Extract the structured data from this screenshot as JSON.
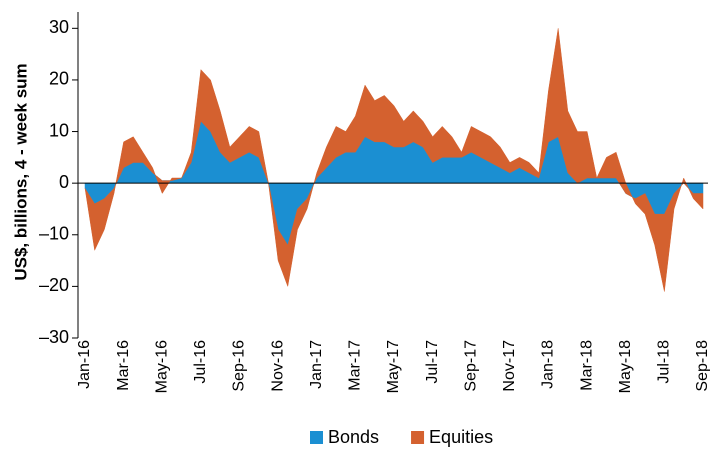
{
  "chart_data": {
    "type": "stacked_area",
    "ylabel": "US$, billions, 4 - week sum",
    "categories": [
      "Jan-16",
      null,
      null,
      null,
      "Mar-16",
      null,
      null,
      null,
      "May-16",
      null,
      null,
      null,
      "Jul-16",
      null,
      null,
      null,
      "Sep-16",
      null,
      null,
      null,
      "Nov-16",
      null,
      null,
      null,
      "Jan-17",
      null,
      null,
      null,
      "Mar-17",
      null,
      null,
      null,
      "May-17",
      null,
      null,
      null,
      "Jul-17",
      null,
      null,
      null,
      "Sep-17",
      null,
      null,
      null,
      "Nov-17",
      null,
      null,
      null,
      "Jan-18",
      null,
      null,
      null,
      "Mar-18",
      null,
      null,
      null,
      "May-18",
      null,
      null,
      null,
      "Jul-18",
      null,
      null,
      null,
      "Sep-18"
    ],
    "series": [
      {
        "name": "Bonds",
        "color": "#1b8fd2",
        "values": [
          -1,
          -4,
          -3,
          -1,
          3,
          4,
          4,
          2,
          0.5,
          0.5,
          1,
          4,
          12,
          10,
          6,
          4,
          5,
          6,
          5,
          0,
          -9,
          -12,
          -5,
          -3,
          1,
          3,
          5,
          6,
          6,
          9,
          8,
          8,
          7,
          7,
          8,
          7,
          4,
          5,
          5,
          5,
          6,
          5,
          4,
          3,
          2,
          3,
          2,
          1,
          8,
          9,
          2,
          0,
          1,
          1,
          1,
          1,
          -2,
          -3,
          -2,
          -6,
          -6,
          -2,
          0,
          -2,
          -2
        ]
      },
      {
        "name": "Equities",
        "color": "#d4612f",
        "values": [
          0,
          -9,
          -6,
          -1,
          5,
          5,
          2,
          1,
          -2.5,
          0.5,
          0,
          2,
          10,
          10,
          8,
          3,
          4,
          5,
          5,
          0,
          -6,
          -8,
          -4,
          -2,
          1,
          4,
          6,
          4,
          7,
          10,
          8,
          9,
          8,
          5,
          6,
          5,
          5,
          6,
          4,
          1,
          5,
          5,
          5,
          4,
          2,
          2,
          2,
          1,
          10,
          21,
          12,
          10,
          9,
          0,
          4,
          5,
          2,
          -1,
          -4,
          -6,
          -15,
          -3,
          1,
          -1,
          -3
        ]
      }
    ],
    "ylim": [
      -30,
      32
    ],
    "yticks": [
      {
        "value": -30,
        "label": "–30"
      },
      {
        "value": -20,
        "label": "–20"
      },
      {
        "value": -10,
        "label": "–10"
      },
      0,
      10,
      20,
      30
    ],
    "legend": "bottom"
  }
}
